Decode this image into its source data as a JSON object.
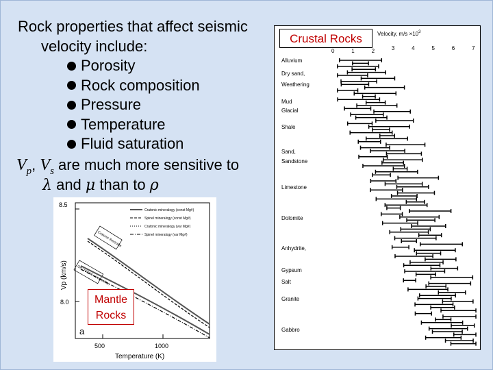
{
  "slide": {
    "title_line1": "Rock properties that affect seismic",
    "title_line2": "velocity include:",
    "bullets": [
      "Porosity",
      "Rock composition",
      "Pressure",
      "Temperature",
      "Fluid saturation"
    ],
    "sensitivity": {
      "vp": "V",
      "vp_sub": "p",
      "vs": "V",
      "vs_sub": "s",
      "text1": "are much more sensitive to",
      "lambda": "λ",
      "and": "and",
      "mu": "μ",
      "than_to": "than to",
      "rho": "ρ"
    },
    "colors": {
      "background": "#d5e2f3",
      "label_red": "#c00000"
    }
  },
  "mantle_figure": {
    "label_line1": "Mantle",
    "label_line2": "Rocks",
    "panel_letter": "a",
    "ylabel": "Vp (km/s)",
    "xlabel": "Temperature (K)",
    "y_ticks": [
      "8.5",
      "8.0"
    ],
    "x_ticks": [
      "500",
      "1000"
    ],
    "legend": [
      "Cratonic mineralogy (const Mg#)",
      "Spinel mineralogy (const Mg#)",
      "Cratonic mineralogy (var Mg#)",
      "Spinel mineralogy (var Mg#)"
    ],
    "annotations": [
      "Cratonic lherzolite",
      "Off-cratonic composition"
    ]
  },
  "crustal_figure": {
    "label": "Crustal Rocks",
    "axis_title": "Velocity, m/s ×10",
    "axis_exp": "3",
    "axis_ticks": [
      "0",
      "1",
      "2",
      "3",
      "4",
      "5",
      "6",
      "7"
    ],
    "rock_types": [
      "Alluvium",
      "Dry sand,",
      "Weathering",
      "Mud",
      "Glacial",
      "Shale",
      "Sand,",
      "Sandstone",
      "Limestone",
      "Dolomite",
      "Anhydrite,",
      "Gypsum",
      "Salt",
      "Granite",
      "Gabbro"
    ]
  }
}
